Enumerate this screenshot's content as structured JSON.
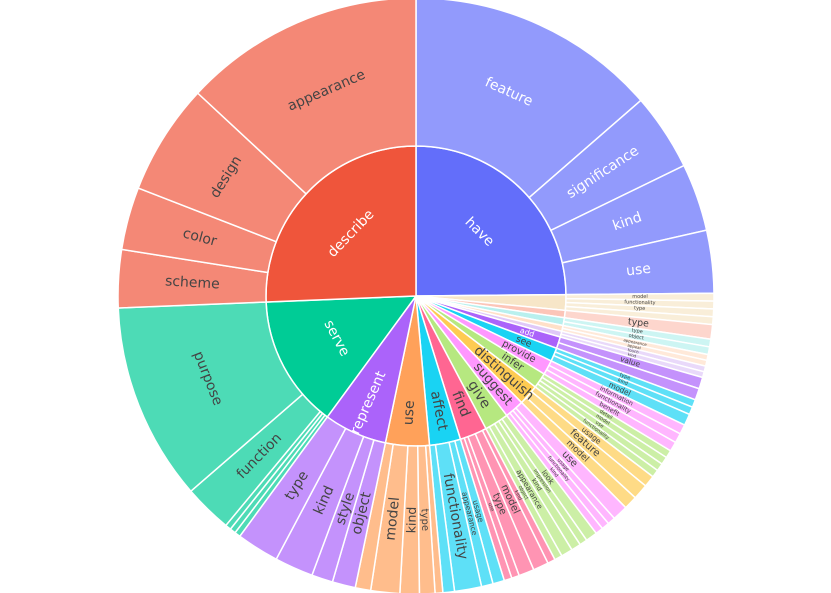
{
  "chart_data": {
    "type": "sunburst",
    "title": "",
    "series": [
      {
        "name": "have",
        "color": "#636efa",
        "value": 0.2375,
        "children": [
          {
            "name": "feature",
            "value": 0.13
          },
          {
            "name": "significance",
            "value": 0.04
          },
          {
            "name": "kind",
            "value": 0.035
          },
          {
            "name": "use",
            "value": 0.0325
          }
        ]
      },
      {
        "name": "",
        "color": "#f7e6c8",
        "value": 0.016,
        "children": [
          {
            "name": "model",
            "value": 0.004
          },
          {
            "name": "functionality",
            "value": 0.004
          },
          {
            "name": "type",
            "value": 0.004
          },
          {
            "name": "",
            "value": 0.004
          }
        ]
      },
      {
        "name": "",
        "color": "#fcc5b8",
        "value": 0.0075,
        "children": [
          {
            "name": "type",
            "value": 0.0075
          }
        ]
      },
      {
        "name": "",
        "color": "#b8f0ee",
        "value": 0.008,
        "children": [
          {
            "name": "type",
            "value": 0.004
          },
          {
            "name": "object",
            "value": 0.004
          }
        ]
      },
      {
        "name": "",
        "color": "#ffe0c8",
        "value": 0.006,
        "children": [
          {
            "name": "appearance",
            "value": 0.003
          },
          {
            "name": "appeal",
            "value": 0.003
          }
        ]
      },
      {
        "name": "",
        "color": "#e0c8f8",
        "value": 0.006,
        "children": [
          {
            "name": "touch",
            "value": 0.003
          },
          {
            "name": "kind",
            "value": 0.003
          }
        ]
      },
      {
        "name": "add",
        "color": "#ab63fa",
        "value": 0.012,
        "children": [
          {
            "name": "value",
            "value": 0.006
          },
          {
            "name": "",
            "value": 0.006
          }
        ]
      },
      {
        "name": "see",
        "color": "#19d3f3",
        "value": 0.014,
        "children": [
          {
            "name": "type",
            "value": 0.004
          },
          {
            "name": "kind",
            "value": 0.004
          },
          {
            "name": "model",
            "value": 0.006
          }
        ]
      },
      {
        "name": "provide",
        "color": "#ff97ff",
        "value": 0.015,
        "children": [
          {
            "name": "information",
            "value": 0.005
          },
          {
            "name": "functionality",
            "value": 0.005
          },
          {
            "name": "benefit",
            "value": 0.005
          }
        ]
      },
      {
        "name": "infer",
        "color": "#b6e880",
        "value": 0.016,
        "children": [
          {
            "name": "detail",
            "value": 0.004
          },
          {
            "name": "model",
            "value": 0.004
          },
          {
            "name": "use",
            "value": 0.004
          },
          {
            "name": "functionality",
            "value": 0.004
          }
        ]
      },
      {
        "name": "distinguish",
        "color": "#fecb52",
        "value": 0.021,
        "children": [
          {
            "name": "usage",
            "value": 0.006
          },
          {
            "name": "feature",
            "value": 0.008
          },
          {
            "name": "model",
            "value": 0.007
          }
        ]
      },
      {
        "name": "suggest",
        "color": "#ff97ff",
        "value": 0.02,
        "children": [
          {
            "name": "use",
            "value": 0.008
          },
          {
            "name": "usage",
            "value": 0.004
          },
          {
            "name": "functionality",
            "value": 0.004
          },
          {
            "name": "kind",
            "value": 0.004
          }
        ]
      },
      {
        "name": "give",
        "color": "#b6e880",
        "value": 0.025,
        "children": [
          {
            "name": "look",
            "value": 0.006
          },
          {
            "name": "impression",
            "value": 0.004
          },
          {
            "name": "kind",
            "value": 0.005
          },
          {
            "name": "appearance",
            "value": 0.006
          },
          {
            "name": "object",
            "value": 0.004
          }
        ]
      },
      {
        "name": "find",
        "color": "#ff6692",
        "value": 0.028,
        "children": [
          {
            "name": "kind",
            "value": 0.004
          },
          {
            "name": "model",
            "value": 0.008
          },
          {
            "name": "type",
            "value": 0.008
          },
          {
            "name": "use",
            "value": 0.004
          },
          {
            "name": "",
            "value": 0.004
          }
        ]
      },
      {
        "name": "affect",
        "color": "#19d3f3",
        "value": 0.032,
        "children": [
          {
            "name": "usage",
            "value": 0.006
          },
          {
            "name": "appearance",
            "value": 0.006
          },
          {
            "name": "functionality",
            "value": 0.014
          },
          {
            "name": "",
            "value": 0.006
          }
        ]
      },
      {
        "name": "use",
        "color": "#ffa15a",
        "value": 0.045,
        "children": [
          {
            "name": "",
            "value": 0.004
          },
          {
            "name": "type",
            "value": 0.008
          },
          {
            "name": "kind",
            "value": 0.01
          },
          {
            "name": "model",
            "value": 0.015
          },
          {
            "name": "",
            "value": 0.008
          }
        ]
      },
      {
        "name": "represent",
        "color": "#ab63fa",
        "value": 0.065,
        "children": [
          {
            "name": "object",
            "value": 0.012
          },
          {
            "name": "style",
            "value": 0.011
          },
          {
            "name": "kind",
            "value": 0.02
          },
          {
            "name": "type",
            "value": 0.022
          }
        ]
      },
      {
        "name": "serve",
        "color": "#00cc96",
        "value": 0.1365,
        "children": [
          {
            "name": "",
            "value": 0.003
          },
          {
            "name": "",
            "value": 0.003
          },
          {
            "name": "",
            "value": 0.003
          },
          {
            "name": "function",
            "value": 0.025
          },
          {
            "name": "purpose",
            "value": 0.1025
          }
        ]
      },
      {
        "name": "describe",
        "color": "#ef553b",
        "value": 0.245,
        "children": [
          {
            "name": "scheme",
            "value": 0.03
          },
          {
            "name": "color",
            "value": 0.0325
          },
          {
            "name": "design",
            "value": 0.0575
          },
          {
            "name": "appearance",
            "value": 0.125
          }
        ]
      }
    ]
  }
}
